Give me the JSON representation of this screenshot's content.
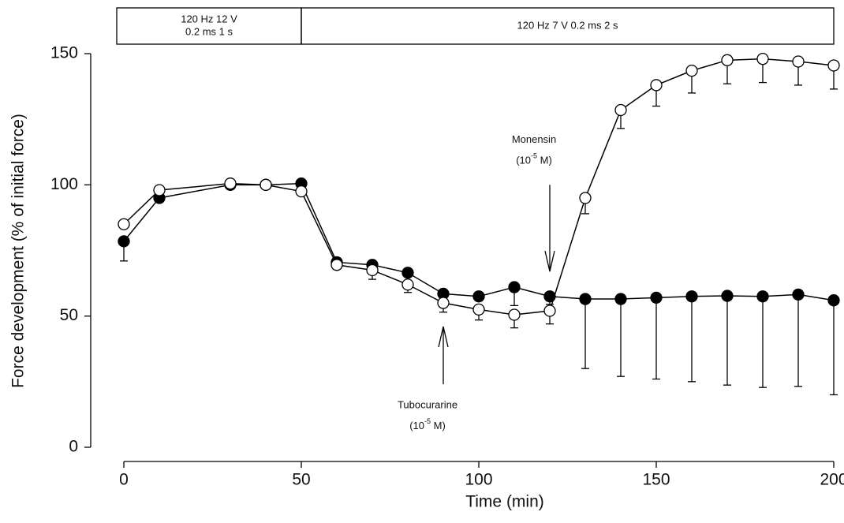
{
  "chart_data": {
    "type": "line",
    "xlabel": "Time (min)",
    "ylabel": "Force development (% of initial force)",
    "x": [
      0,
      10,
      30,
      40,
      50,
      60,
      70,
      80,
      90,
      100,
      110,
      120,
      130,
      140,
      150,
      160,
      170,
      180,
      190,
      200
    ],
    "series": [
      {
        "color": "#000000",
        "marker_fill": "#000000",
        "values": [
          78.5,
          95,
          100,
          100,
          100.5,
          70.5,
          69.5,
          66.5,
          58.5,
          57.5,
          61,
          57.5,
          56.5,
          56.5,
          57,
          57.5,
          57.7,
          57.5,
          58.2,
          56
        ],
        "errors": [
          7.5,
          0,
          0,
          0,
          0,
          2,
          2,
          0,
          0,
          0,
          7,
          3,
          26.5,
          29.5,
          31,
          32.5,
          34,
          34.7,
          35,
          36
        ]
      },
      {
        "color": "#000000",
        "marker_fill": "#ffffff",
        "values": [
          85,
          98,
          100.5,
          100,
          97.5,
          69.5,
          67.5,
          62,
          55,
          52.5,
          50.5,
          52,
          95,
          128.5,
          138,
          143.5,
          147.5,
          148,
          147,
          145.5
        ],
        "errors": [
          0,
          0,
          0,
          0,
          0,
          1.5,
          3.5,
          3,
          3.5,
          4,
          5,
          5,
          6,
          7,
          8,
          8.5,
          9,
          9,
          9,
          9
        ]
      }
    ],
    "xlim": [
      0,
      200
    ],
    "xticks": [
      0,
      50,
      100,
      150,
      200
    ],
    "ylim": [
      0,
      150
    ],
    "yticks": [
      0,
      50,
      100,
      150
    ],
    "protocol": [
      {
        "lines": [
          "120 Hz 12 V",
          "0.2 ms 1 s"
        ],
        "from": -2,
        "to": 50
      },
      {
        "lines": [
          "120 Hz 7 V  0.2 ms 2 s"
        ],
        "from": 50,
        "to": 200
      }
    ],
    "annotations": [
      {
        "text": "Monensin",
        "pre": "(10",
        "sup": "-5",
        "post": " M)",
        "x": 120,
        "arrow_from": 100,
        "arrow_to": 67,
        "side": "above"
      },
      {
        "text": "Tubocurarine",
        "pre": "(10",
        "sup": "-5",
        "post": " M)",
        "x": 90,
        "arrow_from": 24,
        "arrow_to": 46,
        "side": "below"
      }
    ]
  }
}
